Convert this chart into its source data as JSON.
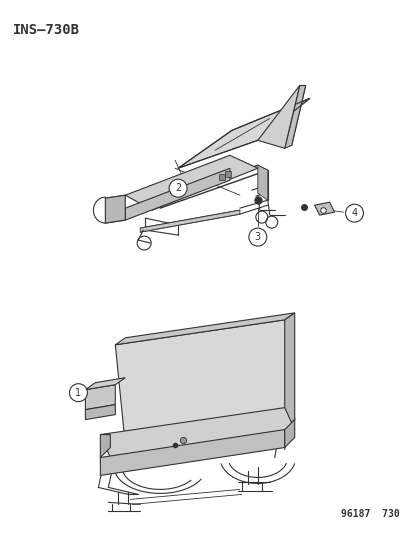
{
  "title": "INS–730B",
  "part_number": "96187  730",
  "bg": "#ffffff",
  "lc": "#333333",
  "fc_light": "#e0e0e0",
  "fc_mid": "#c8c8c8",
  "fc_dark": "#b0b0b0",
  "fig_width": 4.14,
  "fig_height": 5.33,
  "dpi": 100
}
